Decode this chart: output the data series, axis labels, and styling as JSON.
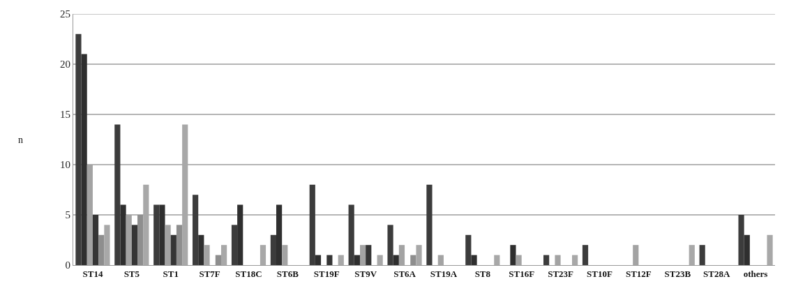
{
  "chart_data": {
    "type": "bar",
    "ylabel": "n",
    "categories": [
      "ST14",
      "ST5",
      "ST1",
      "ST7F",
      "ST18C",
      "ST6B",
      "ST19F",
      "ST9V",
      "ST6A",
      "ST19A",
      "ST8",
      "ST16F",
      "ST23F",
      "ST10F",
      "ST12F",
      "ST23B",
      "ST28A",
      "others"
    ],
    "series": [
      {
        "color": "#3c3c3c",
        "values": [
          23,
          14,
          6,
          7,
          4,
          3,
          8,
          6,
          4,
          8,
          3,
          0,
          1,
          2,
          0,
          0,
          2,
          5
        ]
      },
      {
        "color": "#2f2f2f",
        "values": [
          21,
          6,
          6,
          3,
          6,
          6,
          1,
          1,
          1,
          0,
          1,
          2,
          0,
          0,
          0,
          0,
          0,
          3
        ]
      },
      {
        "color": "#a3a3a3",
        "values": [
          10,
          5,
          4,
          2,
          0,
          2,
          0,
          2,
          2,
          1,
          0,
          1,
          1,
          0,
          2,
          0,
          0,
          0
        ]
      },
      {
        "color": "#353535",
        "values": [
          5,
          4,
          3,
          0,
          0,
          0,
          1,
          2,
          0,
          0,
          0,
          0,
          0,
          0,
          0,
          0,
          0,
          0
        ]
      },
      {
        "color": "#8e8e8e",
        "values": [
          3,
          5,
          4,
          1,
          0,
          0,
          0,
          0,
          1,
          0,
          0,
          0,
          0,
          0,
          0,
          0,
          0,
          0
        ]
      },
      {
        "color": "#a8a8a8",
        "values": [
          4,
          8,
          14,
          2,
          2,
          0,
          1,
          1,
          2,
          0,
          1,
          0,
          1,
          0,
          0,
          2,
          0,
          3
        ]
      }
    ],
    "ylim": [
      0,
      25
    ],
    "yticks": [
      0,
      5,
      10,
      15,
      20,
      25
    ],
    "grid": "y"
  }
}
